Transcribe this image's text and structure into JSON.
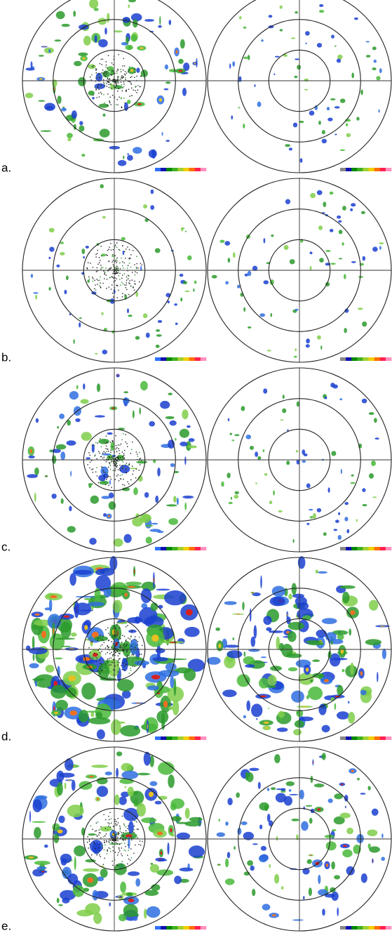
{
  "panels": [
    {
      "label": "a."
    },
    {
      "label": "b."
    },
    {
      "label": "c."
    },
    {
      "label": "d."
    },
    {
      "label": "e."
    }
  ]
}
